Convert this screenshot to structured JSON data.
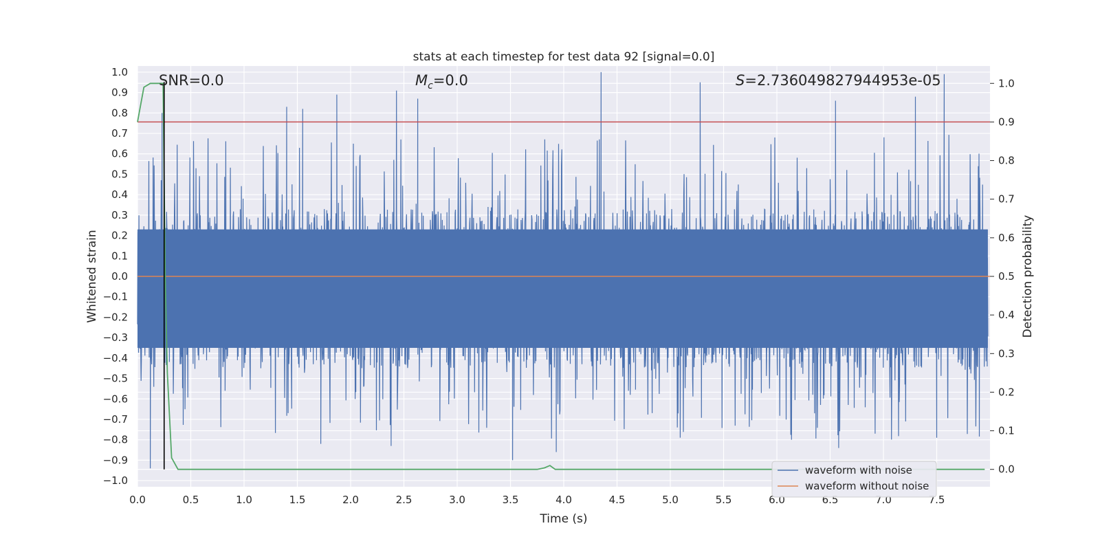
{
  "chart_data": {
    "type": "line",
    "title": "stats at each timestep for test data 92 [signal=0.0]",
    "xlabel": "Time (s)",
    "ylabel": "Whitened strain",
    "y2label": "Detection probability",
    "xlim": [
      0.0,
      8.0
    ],
    "ylim": [
      -1.03,
      1.03
    ],
    "y2lim": [
      -0.045,
      1.045
    ],
    "xticks": [
      "0.0",
      "0.5",
      "1.0",
      "1.5",
      "2.0",
      "2.5",
      "3.0",
      "3.5",
      "4.0",
      "4.5",
      "5.0",
      "5.5",
      "6.0",
      "6.5",
      "7.0",
      "7.5"
    ],
    "yticks": [
      "1.0",
      "0.9",
      "0.8",
      "0.7",
      "0.6",
      "0.5",
      "0.4",
      "0.3",
      "0.2",
      "0.1",
      "0.0",
      "-0.1",
      "-0.2",
      "-0.3",
      "-0.4",
      "-0.5",
      "-0.6",
      "-0.7",
      "-0.8",
      "-0.9",
      "-1.0"
    ],
    "y2ticks": [
      "1.0",
      "0.9",
      "0.8",
      "0.7",
      "0.6",
      "0.5",
      "0.4",
      "0.3",
      "0.2",
      "0.1",
      "0.0"
    ],
    "annotations": {
      "snr": "SNR=0.0",
      "mc_symbol": "M",
      "mc_sub": "c",
      "mc_value": "=0.0",
      "s_symbol": "S",
      "s_value": "=2.736049827944953e-05"
    },
    "threshold_probability": 0.9,
    "marker_time": 0.25,
    "series": [
      {
        "name": "waveform with noise",
        "axis": "left",
        "color": "#4c72b0",
        "description": "dense whitened noise sampled over 0-8 s; approximate envelope",
        "typical_range": [
          -0.35,
          0.23
        ],
        "peak_max": 1.0,
        "peak_min": -0.94,
        "notable_peaks": [
          {
            "t": 0.23,
            "value": 0.8
          },
          {
            "t": 1.4,
            "value": 0.83
          },
          {
            "t": 1.55,
            "value": 0.82
          },
          {
            "t": 1.87,
            "value": 0.89
          },
          {
            "t": 2.43,
            "value": 0.91
          },
          {
            "t": 2.63,
            "value": 0.87
          },
          {
            "t": 4.35,
            "value": 1.0
          },
          {
            "t": 5.28,
            "value": 0.95
          },
          {
            "t": 6.55,
            "value": 0.86
          },
          {
            "t": 7.3,
            "value": 0.88
          },
          {
            "t": 7.57,
            "value": 0.99
          }
        ],
        "notable_troughs": [
          {
            "t": 0.12,
            "value": -0.94
          },
          {
            "t": 1.72,
            "value": -0.82
          },
          {
            "t": 2.38,
            "value": -0.83
          },
          {
            "t": 3.52,
            "value": -0.9
          },
          {
            "t": 3.93,
            "value": -0.86
          },
          {
            "t": 6.58,
            "value": -0.84
          },
          {
            "t": 7.5,
            "value": -0.79
          }
        ]
      },
      {
        "name": "waveform without noise",
        "axis": "left",
        "color": "#dd8452",
        "x": [
          0.0,
          8.0
        ],
        "y": [
          0.0,
          0.0
        ]
      },
      {
        "name": "detection probability",
        "axis": "right",
        "color": "#55a868",
        "x": [
          0.0,
          0.06,
          0.12,
          0.18,
          0.24,
          0.26,
          0.28,
          0.32,
          0.38,
          0.5,
          1.0,
          2.0,
          3.0,
          3.75,
          3.82,
          3.87,
          3.92,
          4.0,
          5.0,
          6.0,
          7.0,
          7.95
        ],
        "y": [
          0.9,
          0.99,
          1.0,
          1.0,
          1.0,
          0.5,
          0.25,
          0.03,
          0.0,
          0.0,
          0.0,
          0.0,
          0.0,
          0.0,
          0.004,
          0.01,
          0.0,
          0.0,
          0.0,
          0.0,
          0.0,
          0.0
        ]
      }
    ],
    "legend": {
      "position": "lower-right",
      "entries": [
        {
          "label": "waveform with noise",
          "color": "#4c72b0"
        },
        {
          "label": "waveform without noise",
          "color": "#dd8452"
        }
      ]
    },
    "colors": {
      "background": "#eaeaf2",
      "grid": "#ffffff",
      "threshold": "#c44e52",
      "marker": "#000000"
    }
  }
}
